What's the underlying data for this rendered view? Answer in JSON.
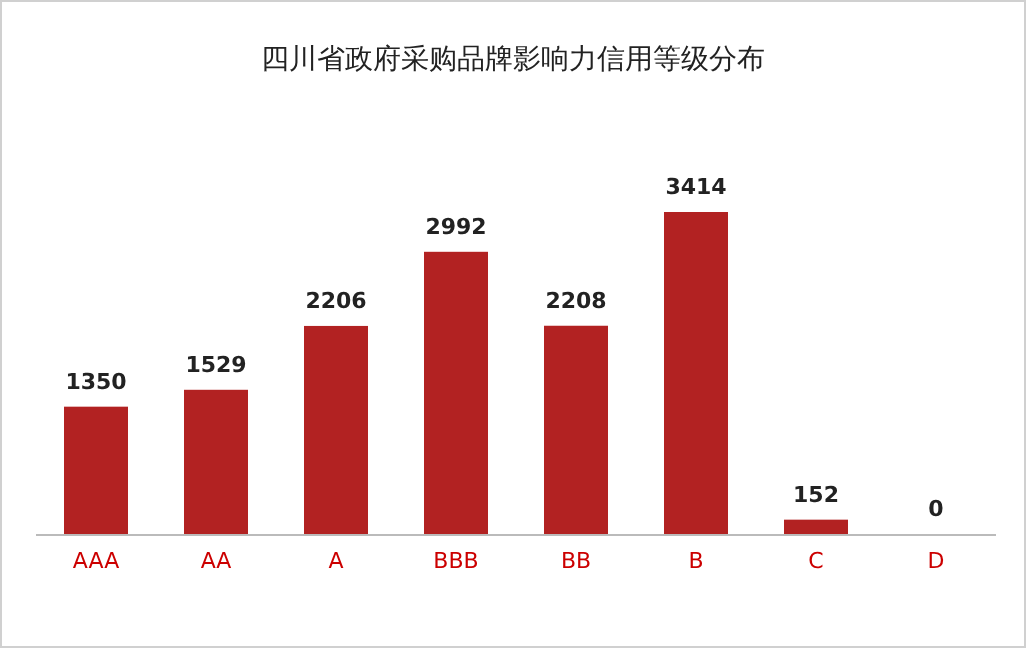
{
  "chart_data": {
    "type": "bar",
    "title": "四川省政府采购品牌影响力信用等级分布",
    "categories": [
      "AAA",
      "AA",
      "A",
      "BBB",
      "BB",
      "B",
      "C",
      "D"
    ],
    "values": [
      1350,
      1529,
      2206,
      2992,
      2208,
      3414,
      152,
      0
    ],
    "color": "#b22222",
    "data_labels": true
  }
}
